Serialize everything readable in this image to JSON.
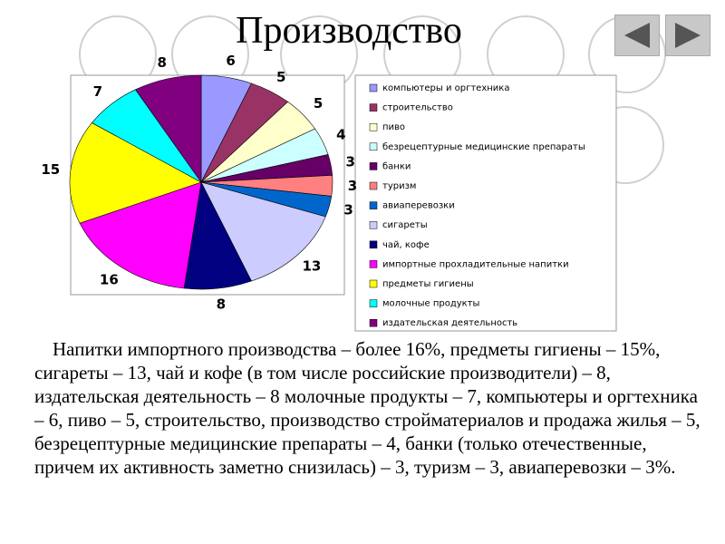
{
  "slide": {
    "title": "Производство",
    "text": "Напитки импортного производства – более 16%, предметы гигиены – 15%, сигареты – 13, чай и кофе (в том числе российские производители) – 8, издательская деятельность – 8 молочные продукты – 7, компьютеры и оргтехника – 6, пиво – 5, строительство, производство стройматериалов и продажа жилья – 5, безрецептурные медицинские препараты – 4, банки (только отечественные, причем их активность заметно снизилась) – 3, туризм – 3, авиаперевозки – 3%."
  },
  "chart_data": {
    "type": "pie",
    "categories": [
      "компьютеры и оргтехника",
      "строительство",
      "пиво",
      "безрецептурные медицинские препараты",
      "банки",
      "туризм",
      "авиаперевозки",
      "сигареты",
      "чай, кофе",
      "импортные прохладительные напитки",
      "предметы гигиены",
      "молочные продукты",
      "издательская деятельность"
    ],
    "values": [
      6,
      5,
      5,
      4,
      3,
      3,
      3,
      13,
      8,
      16,
      15,
      7,
      8
    ],
    "colors": [
      "#9999ff",
      "#993366",
      "#ffffcc",
      "#ccffff",
      "#660066",
      "#ff8080",
      "#0066cc",
      "#ccccff",
      "#000080",
      "#ff00ff",
      "#ffff00",
      "#00ffff",
      "#800080"
    ],
    "legend": "right"
  }
}
